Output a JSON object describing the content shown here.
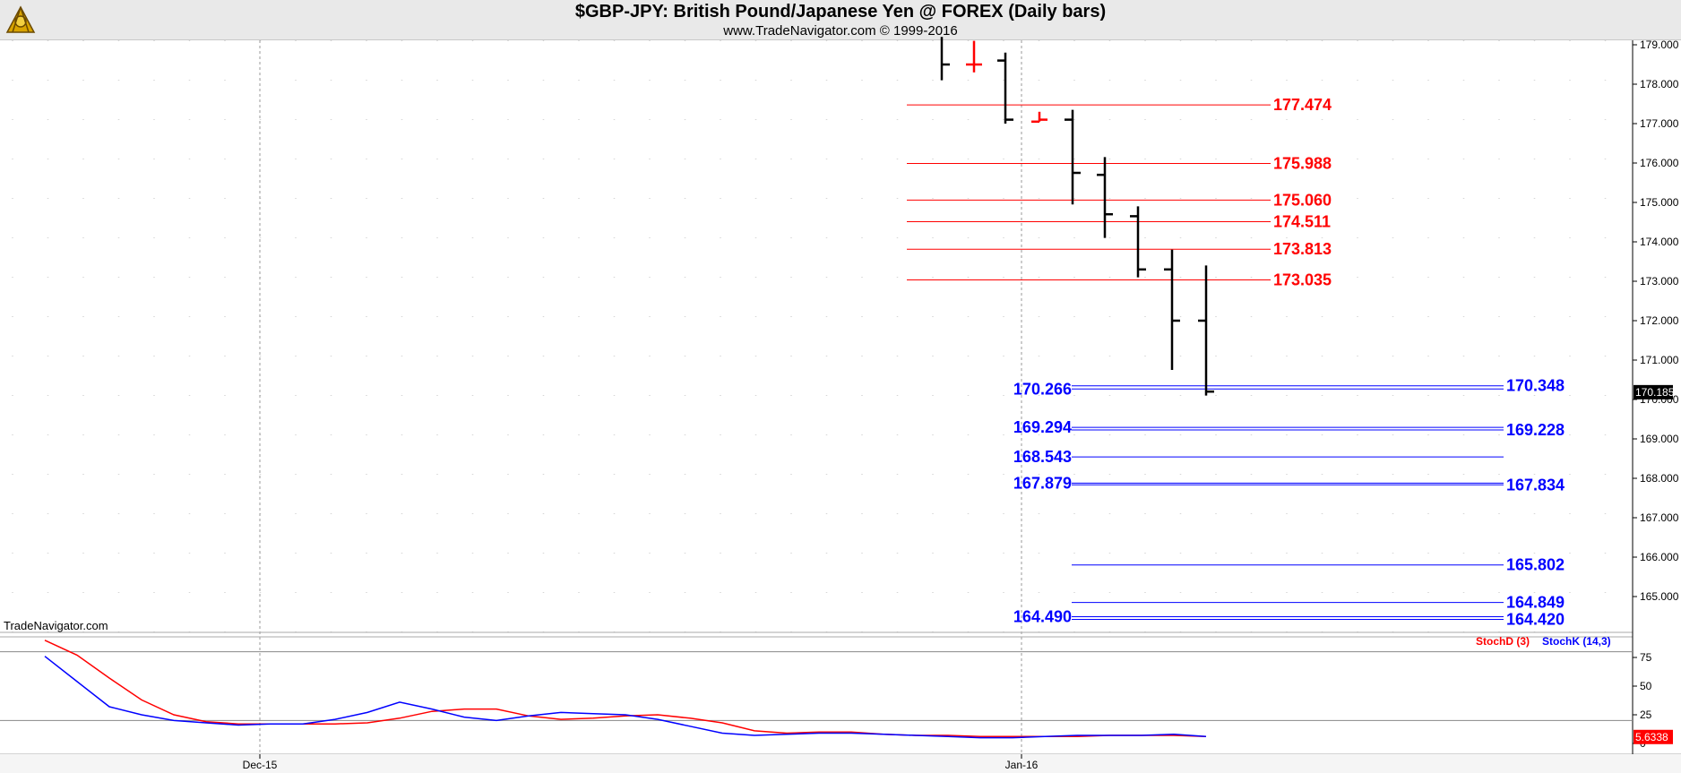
{
  "header": {
    "title": "$GBP-JPY:  British Pound/Japanese Yen @ FOREX  (Daily bars)",
    "subtitle": "www.TradeNavigator.com © 1999-2016",
    "watermark": "TradeNavigator.com",
    "logo_icon": "sextant-icon"
  },
  "chart_data": [
    {
      "type": "ohlc",
      "ylim": [
        163.9,
        179.1
      ],
      "yticks": [
        "179.000",
        "178.000",
        "177.000",
        "176.000",
        "175.000",
        "174.000",
        "173.000",
        "172.000",
        "171.000",
        "170.000",
        "169.000",
        "168.000",
        "167.000",
        "166.000",
        "165.000"
      ],
      "xtick_labels": [
        "Dec-15",
        "Jan-16"
      ],
      "last_price": "170.185",
      "bars": [
        {
          "date": "2015-12-29",
          "open": null,
          "high": 179.2,
          "low": 178.1,
          "close": 178.5,
          "color": "#000000"
        },
        {
          "date": "2015-12-30",
          "open": 178.5,
          "high": 179.1,
          "low": 178.3,
          "close": 178.5,
          "color": "#ff0000"
        },
        {
          "date": "2015-12-31",
          "open": 178.6,
          "high": 178.8,
          "low": 177.0,
          "close": 177.1,
          "color": "#000000"
        },
        {
          "date": "2016-01-01",
          "open": 177.05,
          "high": 177.3,
          "low": 177.05,
          "close": 177.1,
          "color": "#ff0000"
        },
        {
          "date": "2016-01-04",
          "open": 177.1,
          "high": 177.35,
          "low": 174.95,
          "close": 175.75,
          "color": "#000000"
        },
        {
          "date": "2016-01-05",
          "open": 175.7,
          "high": 176.15,
          "low": 174.1,
          "close": 174.7,
          "color": "#000000"
        },
        {
          "date": "2016-01-06",
          "open": 174.65,
          "high": 174.9,
          "low": 173.1,
          "close": 173.3,
          "color": "#000000"
        },
        {
          "date": "2016-01-07",
          "open": 173.3,
          "high": 173.8,
          "low": 170.75,
          "close": 172.0,
          "color": "#000000"
        },
        {
          "date": "2016-01-08",
          "open": 172.0,
          "high": 173.4,
          "low": 170.1,
          "close": 170.2,
          "color": "#000000"
        }
      ],
      "red_levels": [
        "177.474",
        "175.988",
        "175.060",
        "174.511",
        "173.813",
        "173.035"
      ],
      "blue_levels_left": [
        "170.266",
        "169.294",
        "168.543",
        "167.879",
        "164.490"
      ],
      "blue_levels_right": [
        "170.348",
        "169.228",
        "167.834",
        "165.802",
        "164.849",
        "164.420"
      ],
      "colors": {
        "resistance": "#ff0000",
        "support": "#0000ff",
        "bars": "#000000"
      }
    },
    {
      "type": "line",
      "ylim": [
        0,
        100
      ],
      "yticks": [
        "75",
        "50",
        "25",
        "0"
      ],
      "reference_levels": [
        80,
        20
      ],
      "legend": [
        "StochD (3)",
        "StochK (14,3)"
      ],
      "last_value": "5.6338",
      "series": [
        {
          "name": "StochD (3)",
          "color": "#ff0000",
          "values": [
            90,
            77,
            57,
            38,
            25,
            19,
            17,
            17,
            17,
            17,
            18,
            22,
            28,
            30,
            30,
            24,
            21,
            22,
            24,
            25,
            22,
            18,
            11,
            9,
            10,
            10,
            8,
            7,
            7,
            6,
            6,
            6,
            6,
            7,
            7,
            7,
            6
          ]
        },
        {
          "name": "StochK (14,3)",
          "color": "#0000ff",
          "values": [
            76,
            54,
            32,
            25,
            20,
            18,
            16,
            17,
            17,
            21,
            27,
            36,
            30,
            23,
            20,
            24,
            27,
            26,
            25,
            21,
            15,
            9,
            7,
            8,
            9,
            9,
            8,
            7,
            6,
            5,
            5,
            6,
            7,
            7,
            7,
            8,
            6
          ]
        }
      ]
    }
  ]
}
